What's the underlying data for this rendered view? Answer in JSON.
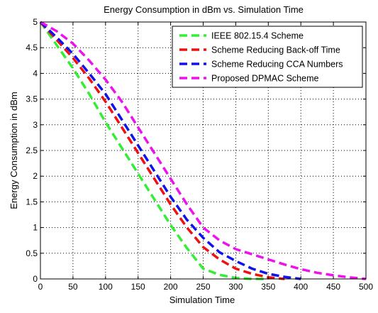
{
  "chart_data": {
    "type": "line",
    "title": "Energy Consumption in dBm vs. Simulation Time",
    "xlabel": "Simulation Time",
    "ylabel": "Energy Consumption in dBm",
    "xlim": [
      0,
      500
    ],
    "ylim": [
      0,
      5
    ],
    "xticks": [
      0,
      50,
      100,
      150,
      200,
      250,
      300,
      350,
      400,
      450,
      500
    ],
    "yticks": [
      0,
      0.5,
      1,
      1.5,
      2,
      2.5,
      3,
      3.5,
      4,
      4.5,
      5
    ],
    "grid": true,
    "legend_position": "top-right",
    "series": [
      {
        "name": "IEEE 802.15.4 Scheme",
        "color": "#33ee33",
        "x": [
          0,
          25,
          50,
          75,
          100,
          125,
          150,
          175,
          200,
          225,
          250,
          275,
          300,
          325,
          350
        ],
        "y": [
          5,
          4.55,
          4.1,
          3.6,
          3.05,
          2.55,
          2.05,
          1.55,
          1.05,
          0.6,
          0.2,
          0.08,
          0.02,
          0.0,
          0.0
        ]
      },
      {
        "name": "Scheme Reducing Back-off Time",
        "color": "#ee1111",
        "x": [
          0,
          25,
          50,
          75,
          100,
          125,
          150,
          175,
          200,
          225,
          250,
          275,
          300,
          325,
          350,
          375
        ],
        "y": [
          5,
          4.65,
          4.3,
          3.9,
          3.45,
          2.95,
          2.45,
          1.95,
          1.45,
          1.0,
          0.62,
          0.38,
          0.2,
          0.1,
          0.03,
          0.0
        ]
      },
      {
        "name": "Scheme Reducing CCA Numbers",
        "color": "#1111ee",
        "x": [
          0,
          25,
          50,
          75,
          100,
          125,
          150,
          175,
          200,
          225,
          250,
          275,
          300,
          325,
          350,
          375,
          400
        ],
        "y": [
          5,
          4.7,
          4.38,
          4.0,
          3.6,
          3.1,
          2.6,
          2.1,
          1.6,
          1.15,
          0.8,
          0.52,
          0.35,
          0.2,
          0.1,
          0.04,
          0.0
        ]
      },
      {
        "name": "Proposed DPMAC Scheme",
        "color": "#ee11ee",
        "x": [
          0,
          25,
          50,
          75,
          100,
          125,
          150,
          175,
          200,
          225,
          250,
          275,
          300,
          325,
          350,
          375,
          400,
          425,
          450,
          475,
          500
        ],
        "y": [
          5,
          4.82,
          4.58,
          4.25,
          3.88,
          3.45,
          2.95,
          2.45,
          1.95,
          1.45,
          1.0,
          0.75,
          0.58,
          0.48,
          0.38,
          0.28,
          0.19,
          0.12,
          0.07,
          0.03,
          0.0
        ]
      }
    ]
  }
}
